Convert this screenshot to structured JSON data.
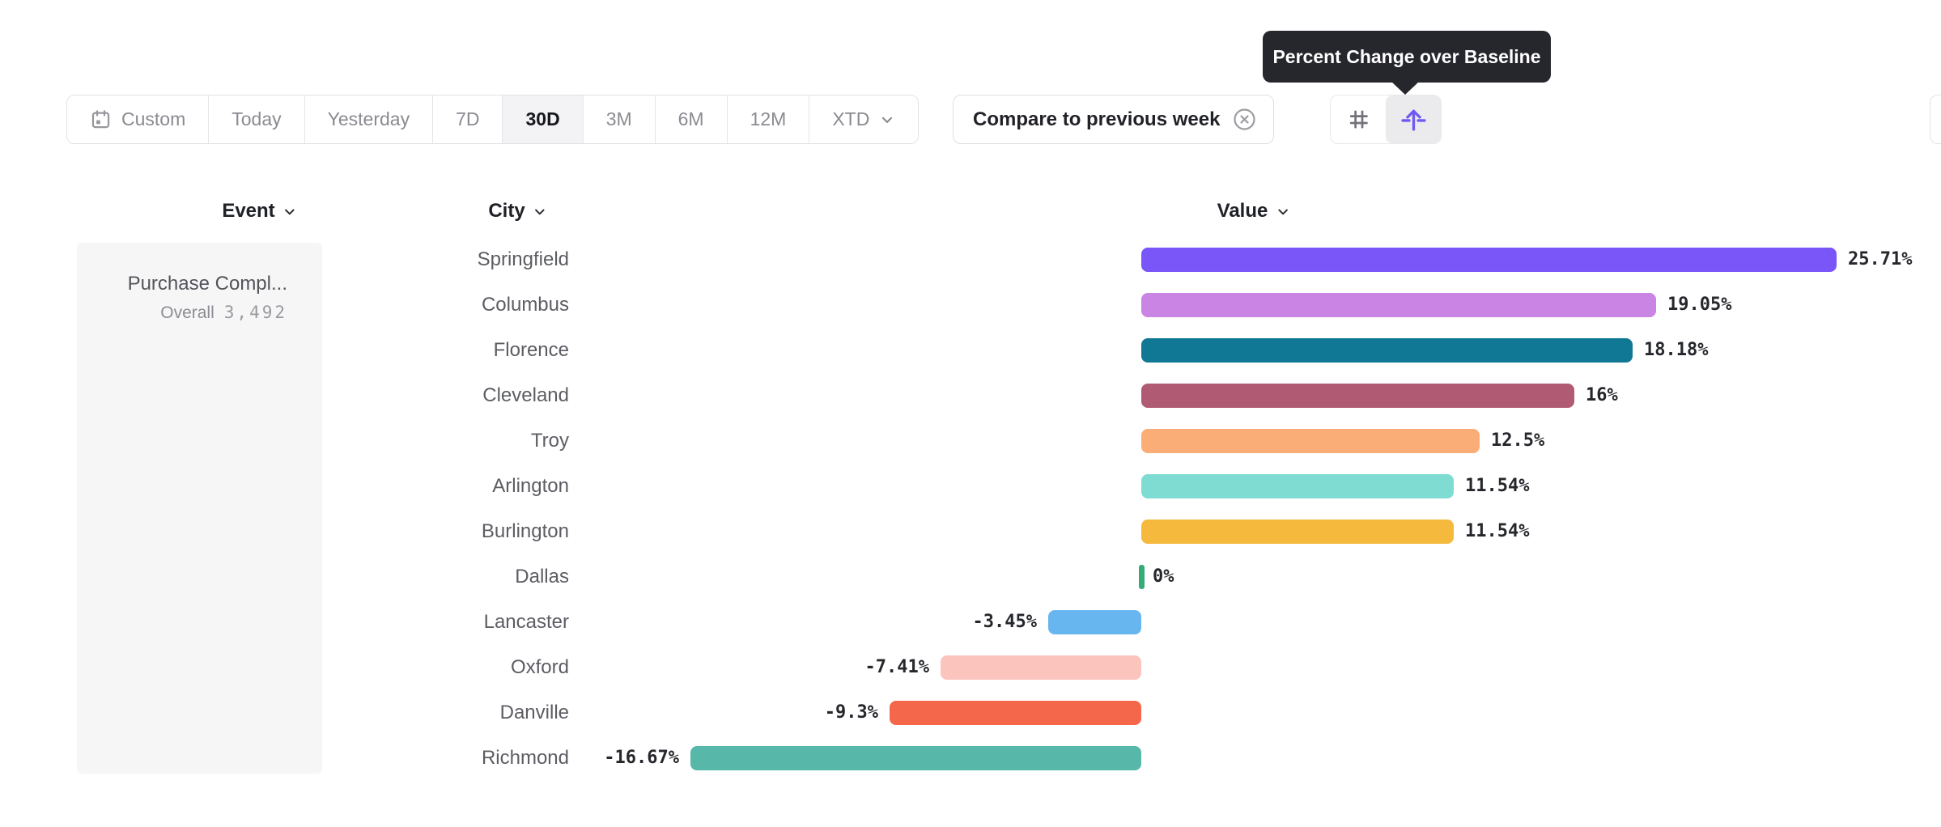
{
  "tooltip": {
    "text": "Percent Change over Baseline"
  },
  "toolbar": {
    "date_ranges": [
      {
        "label": "Custom",
        "icon": "calendar-icon",
        "selected": false
      },
      {
        "label": "Today",
        "selected": false
      },
      {
        "label": "Yesterday",
        "selected": false
      },
      {
        "label": "7D",
        "selected": false
      },
      {
        "label": "30D",
        "selected": true
      },
      {
        "label": "3M",
        "selected": false
      },
      {
        "label": "6M",
        "selected": false
      },
      {
        "label": "12M",
        "selected": false
      },
      {
        "label": "XTD",
        "selected": false,
        "has_dropdown": true
      }
    ],
    "compare_chip": {
      "label": "Compare to previous week",
      "close_icon": "circle-x-icon"
    },
    "view_toggle": {
      "options": [
        {
          "icon": "number-hash-icon",
          "selected": false
        },
        {
          "icon": "percent-baseline-arrow-icon",
          "selected": true,
          "accent_color": "#6F59F3"
        }
      ]
    }
  },
  "columns": {
    "event": "Event",
    "city": "City",
    "value": "Value"
  },
  "event_cell": {
    "name": "Purchase Compl...",
    "segment": "Overall",
    "count": "3,492"
  },
  "chart_data": {
    "type": "bar",
    "orientation": "horizontal",
    "unit": "%",
    "baseline": 0,
    "axis_max": 25.71,
    "categories": [
      "Springfield",
      "Columbus",
      "Florence",
      "Cleveland",
      "Troy",
      "Arlington",
      "Burlington",
      "Dallas",
      "Lancaster",
      "Oxford",
      "Danville",
      "Richmond"
    ],
    "values": [
      25.71,
      19.05,
      18.18,
      16,
      12.5,
      11.54,
      11.54,
      0,
      -3.45,
      -7.41,
      -9.3,
      -16.67
    ],
    "labels": [
      "25.71%",
      "19.05%",
      "18.18%",
      "16%",
      "12.5%",
      "11.54%",
      "11.54%",
      "0%",
      "-3.45%",
      "-7.41%",
      "-9.3%",
      "-16.67%"
    ],
    "colors": [
      "#7A55F8",
      "#CA84E4",
      "#107795",
      "#B15A73",
      "#FBAD77",
      "#7EDCD2",
      "#F5B93E",
      "#35AB77",
      "#68B6F0",
      "#FBC4BD",
      "#F5674B",
      "#57B7A8"
    ]
  }
}
